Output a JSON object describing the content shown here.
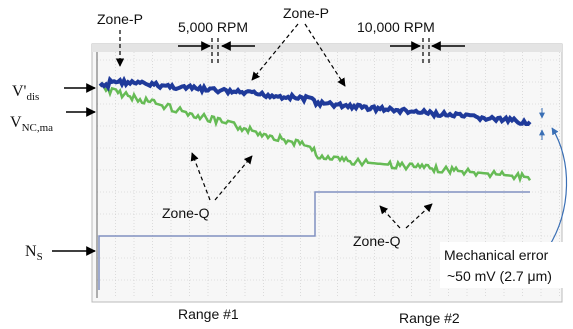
{
  "labels": {
    "zone_p_left": "Zone-P",
    "rpm_5000": "5,000 RPM",
    "zone_p_right": "Zone-P",
    "rpm_10000": "10,000 RPM",
    "v_dis": {
      "main": "V'",
      "sub": "dis"
    },
    "v_nc": {
      "main": "V",
      "sub": "NC,ma"
    },
    "n_s": {
      "main": "N",
      "sub": "S"
    },
    "zone_q_left": "Zone-Q",
    "zone_q_right": "Zone-Q",
    "mech_error": "Mechanical error",
    "mech_value": "~50 mV (2.7 μm)",
    "range_1": "Range #1",
    "range_2": "Range #2"
  }
}
